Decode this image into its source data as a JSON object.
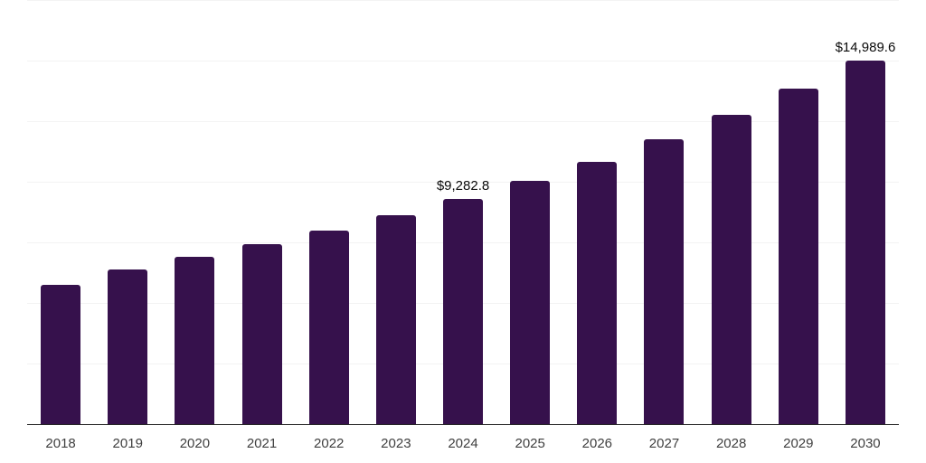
{
  "chart_data": {
    "type": "bar",
    "title": "",
    "xlabel": "",
    "ylabel": "",
    "categories": [
      "2018",
      "2019",
      "2020",
      "2021",
      "2022",
      "2023",
      "2024",
      "2025",
      "2026",
      "2027",
      "2028",
      "2029",
      "2030"
    ],
    "values": [
      5740,
      6375,
      6900,
      7420,
      7980,
      8615,
      9282.8,
      10030,
      10820,
      11750,
      12760,
      13840,
      14989.6
    ],
    "point_labels": [
      {
        "index": 6,
        "text": "$9,282.8"
      },
      {
        "index": 12,
        "text": "$14,989.6"
      }
    ],
    "ylim": [
      0,
      17500
    ],
    "gridline_step": 2500,
    "grid": true,
    "legend": false,
    "y_axis_tick_labels_visible": false,
    "x_axis_tick_labels_visible": true
  },
  "colors": {
    "background": "#ffffff",
    "bar": "#36114c",
    "gridline": "#f3f3f3",
    "axis_line": "#262626",
    "tick_label": "#3f3f3f",
    "value_label": "#0a0a0a"
  }
}
